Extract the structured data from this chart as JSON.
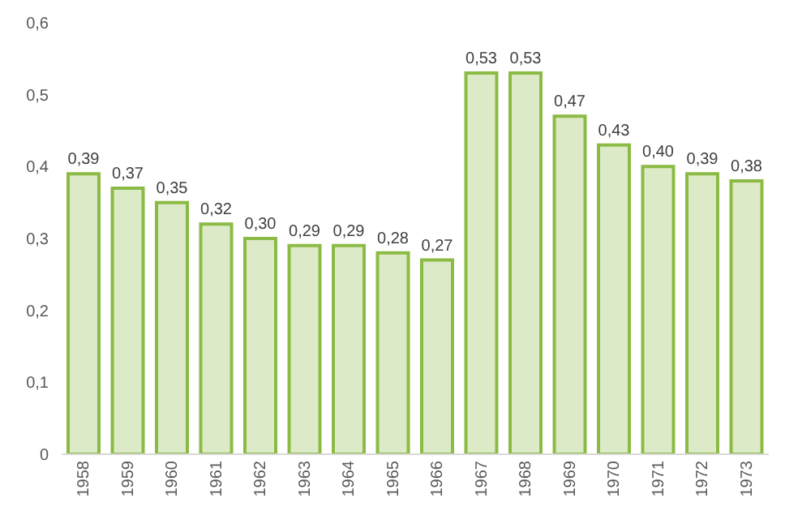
{
  "chart_data": {
    "type": "bar",
    "categories": [
      "1958",
      "1959",
      "1960",
      "1961",
      "1962",
      "1963",
      "1964",
      "1965",
      "1966",
      "1967",
      "1968",
      "1969",
      "1970",
      "1971",
      "1972",
      "1973"
    ],
    "values": [
      0.39,
      0.37,
      0.35,
      0.32,
      0.3,
      0.29,
      0.29,
      0.28,
      0.27,
      0.53,
      0.53,
      0.47,
      0.43,
      0.4,
      0.39,
      0.38
    ],
    "value_labels": [
      "0,39",
      "0,37",
      "0,35",
      "0,32",
      "0,30",
      "0,29",
      "0,29",
      "0,28",
      "0,27",
      "0,53",
      "0,53",
      "0,47",
      "0,43",
      "0,40",
      "0,39",
      "0,38"
    ],
    "color": "#8cbb45",
    "ylim": [
      0,
      0.6
    ],
    "yticks": [
      0,
      {
        "value": 0.1,
        "label": "0,1"
      },
      {
        "value": 0.2,
        "label": "0,2"
      },
      {
        "value": 0.3,
        "label": "0,3"
      },
      {
        "value": 0.4,
        "label": "0,4"
      },
      {
        "value": 0.5,
        "label": "0,5"
      },
      {
        "value": 0.6,
        "label": "0,6"
      }
    ],
    "grid": false,
    "legend": false
  }
}
